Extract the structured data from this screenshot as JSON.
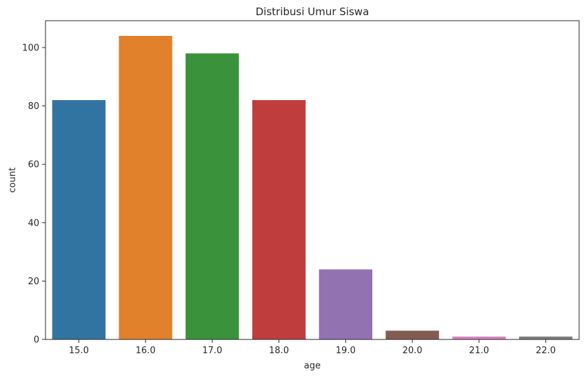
{
  "chart_data": {
    "type": "bar",
    "title": "Distribusi Umur Siswa",
    "xlabel": "age",
    "ylabel": "count",
    "categories": [
      "15.0",
      "16.0",
      "17.0",
      "18.0",
      "19.0",
      "20.0",
      "21.0",
      "22.0"
    ],
    "values": [
      82,
      104,
      98,
      82,
      24,
      3,
      1,
      1
    ],
    "colors": [
      "#3274a1",
      "#e1812c",
      "#3a923a",
      "#c03d3e",
      "#9372b2",
      "#845b53",
      "#d684bd",
      "#7f7f7f"
    ],
    "ylim": [
      0,
      109.2
    ],
    "yticks": [
      "0",
      "20",
      "40",
      "60",
      "80",
      "100"
    ],
    "grid": false,
    "legend": "none"
  }
}
